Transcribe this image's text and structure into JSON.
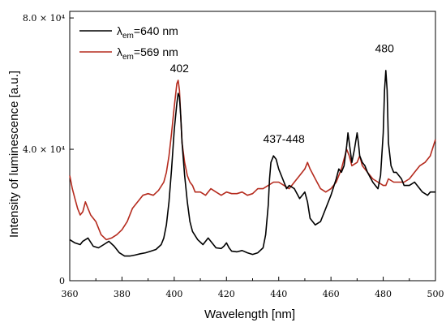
{
  "chart_data": {
    "type": "line",
    "xlabel": "Wavelength [nm]",
    "ylabel": "Intensity of luminescence [a.u.]",
    "xlim": [
      360,
      500
    ],
    "ylim": [
      0,
      82000
    ],
    "x_ticks": [
      "360",
      "380",
      "400",
      "420",
      "440",
      "460",
      "480",
      "500"
    ],
    "x_tick_values": [
      360,
      380,
      400,
      420,
      440,
      460,
      480,
      500
    ],
    "y_ticks": [
      {
        "value": 0,
        "label": "0"
      },
      {
        "value": 40000,
        "label": "4.0 × 10⁴"
      },
      {
        "value": 80000,
        "label": "8.0 × 10⁴"
      }
    ],
    "legend": {
      "placement": "top-left",
      "entries": [
        {
          "symbol": "λ",
          "subscript": "em",
          "rest": "=640 nm",
          "color": "#000000"
        },
        {
          "symbol": "λ",
          "subscript": "em",
          "rest": "=569 nm",
          "color": "#b52b1e"
        }
      ]
    },
    "annotations": [
      {
        "text": "402",
        "x": 402,
        "y": 63500
      },
      {
        "text": "437-448",
        "x": 442,
        "y": 42000
      },
      {
        "text": "480",
        "x": 480.5,
        "y": 69500
      }
    ],
    "series": [
      {
        "name": "λem=640 nm",
        "color": "#000000",
        "x": [
          360,
          362,
          364,
          365,
          367,
          369,
          371,
          373,
          375,
          377,
          379,
          381,
          383,
          385,
          387,
          389,
          391,
          393,
          395,
          396,
          397,
          398,
          399,
          400,
          401,
          401.5,
          402,
          402.5,
          403,
          404,
          405,
          406,
          407,
          409,
          411,
          413,
          415,
          416,
          418,
          419,
          420,
          421,
          422,
          424,
          426,
          428,
          430,
          432,
          434,
          435,
          436,
          436.5,
          437,
          438,
          439,
          440,
          442,
          443,
          444,
          446,
          448,
          450,
          451,
          452,
          454,
          456,
          458,
          460,
          462,
          463,
          464,
          465,
          466,
          466.5,
          467,
          468,
          469,
          470,
          470.5,
          471,
          472,
          473,
          474,
          476,
          477,
          478,
          479,
          480,
          480.5,
          481,
          481.5,
          482,
          483,
          484,
          485,
          487,
          488,
          490,
          492,
          493,
          495,
          497,
          498,
          500
        ],
        "y": [
          12500,
          11500,
          11000,
          12000,
          13000,
          10500,
          10000,
          11000,
          12000,
          10500,
          8500,
          7500,
          7500,
          7800,
          8200,
          8500,
          9000,
          9500,
          11000,
          13000,
          17000,
          24000,
          34000,
          46000,
          54000,
          57000,
          56000,
          50000,
          42000,
          32000,
          24000,
          18000,
          15000,
          12500,
          11000,
          13000,
          11000,
          10000,
          9800,
          10500,
          11500,
          10000,
          9000,
          8800,
          9200,
          8500,
          8000,
          8500,
          10000,
          14000,
          23000,
          31000,
          36000,
          38000,
          37000,
          34000,
          30000,
          28000,
          29000,
          28000,
          25000,
          27000,
          24000,
          19000,
          17000,
          18000,
          22000,
          26000,
          31000,
          34000,
          33000,
          35000,
          41000,
          45000,
          42000,
          36000,
          40000,
          45000,
          42000,
          38000,
          36000,
          35000,
          33000,
          30000,
          29000,
          28000,
          32000,
          45000,
          58000,
          64000,
          58000,
          42000,
          35000,
          33000,
          33000,
          31000,
          29000,
          29000,
          30000,
          29000,
          27000,
          26000,
          27000,
          27000
        ]
      },
      {
        "name": "λem=569 nm",
        "color": "#b52b1e",
        "x": [
          360,
          361,
          362,
          363,
          364,
          365,
          366,
          367,
          368,
          370,
          372,
          374,
          376,
          378,
          380,
          382,
          384,
          386,
          388,
          390,
          392,
          394,
          396,
          397,
          398,
          399,
          400,
          401,
          401.5,
          402,
          402.5,
          403,
          404,
          405,
          406,
          407,
          408,
          410,
          412,
          414,
          416,
          418,
          420,
          422,
          424,
          426,
          428,
          430,
          432,
          434,
          436,
          438,
          440,
          442,
          444,
          446,
          448,
          450,
          451,
          452,
          454,
          456,
          458,
          460,
          462,
          464,
          466,
          467,
          468,
          470,
          471,
          472,
          474,
          476,
          478,
          480,
          481,
          482,
          484,
          486,
          488,
          490,
          492,
          494,
          496,
          498,
          500
        ],
        "y": [
          32000,
          28000,
          25000,
          22000,
          20000,
          21000,
          24000,
          22000,
          20000,
          18000,
          14000,
          12500,
          13000,
          14000,
          15500,
          18000,
          22000,
          24000,
          26000,
          26500,
          26000,
          27500,
          30000,
          33000,
          38000,
          45000,
          53000,
          60000,
          61000,
          58000,
          50000,
          42000,
          36000,
          32000,
          30000,
          29000,
          27000,
          27000,
          26000,
          28000,
          27000,
          26000,
          27000,
          26500,
          26500,
          27000,
          26000,
          26500,
          28000,
          28000,
          29000,
          30000,
          30000,
          29000,
          28000,
          30000,
          32000,
          34000,
          36000,
          34000,
          31000,
          28000,
          27000,
          28000,
          30000,
          34000,
          40000,
          38000,
          35000,
          36000,
          38000,
          35000,
          33000,
          31000,
          30000,
          29000,
          29000,
          31000,
          30000,
          30000,
          30000,
          31000,
          33000,
          35000,
          36000,
          38000,
          43000
        ]
      }
    ]
  }
}
